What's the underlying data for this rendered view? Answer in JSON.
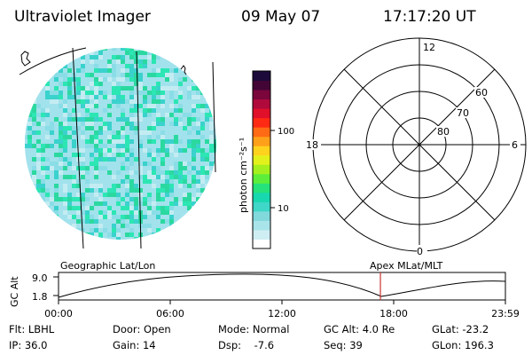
{
  "header": {
    "title": "Ultraviolet Imager",
    "date": "09 May 07",
    "time": "17:17:20 UT"
  },
  "colorbar": {
    "unit_label": "photon cm⁻²s⁻¹",
    "ticks": [
      {
        "label": "100",
        "value": 100
      },
      {
        "label": "10",
        "value": 10
      }
    ],
    "colors": [
      "#ffffff",
      "#cfeef3",
      "#a9e4ea",
      "#82d9dc",
      "#3fd7c7",
      "#18d8b0",
      "#26e27b",
      "#5cee3b",
      "#a4f01e",
      "#e2f01c",
      "#ffd21e",
      "#ffa01a",
      "#ff6a14",
      "#ff2a14",
      "#e0102a",
      "#b00a3c",
      "#7a063c",
      "#420535",
      "#1c0a3a"
    ]
  },
  "image_panel": {
    "noise_colors": [
      "#3ad2cc",
      "#2ce6b4",
      "#8adde6",
      "#c3ecf2",
      "#2bd9a0"
    ],
    "base_color": "#a2e2ec"
  },
  "polar_plot": {
    "mlt_labels": {
      "top": "12",
      "left": "18",
      "right": "6",
      "bottom": "0"
    },
    "lat_labels": [
      "60",
      "70",
      "80"
    ]
  },
  "timeline": {
    "left_label": "Geographic Lat/Lon",
    "right_label": "Apex MLat/MLT",
    "y_title": "GC Alt",
    "y_ticks": [
      "9.0",
      "1.8"
    ],
    "x_ticks": [
      "00:00",
      "06:00",
      "12:00",
      "18:00",
      "23:59"
    ],
    "current_time_fraction": 0.7203,
    "marker_color": "#cc3333"
  },
  "info": {
    "rows": [
      [
        "Flt: LBHL",
        "Door: Open",
        "Mode: Normal",
        "GC Alt: 4.0 Re",
        "GLat: -23.2"
      ],
      [
        "IP: 36.0",
        "Gain: 14",
        "Dsp:    -7.6",
        "Seq: 39",
        "GLon: 196.3"
      ]
    ]
  }
}
